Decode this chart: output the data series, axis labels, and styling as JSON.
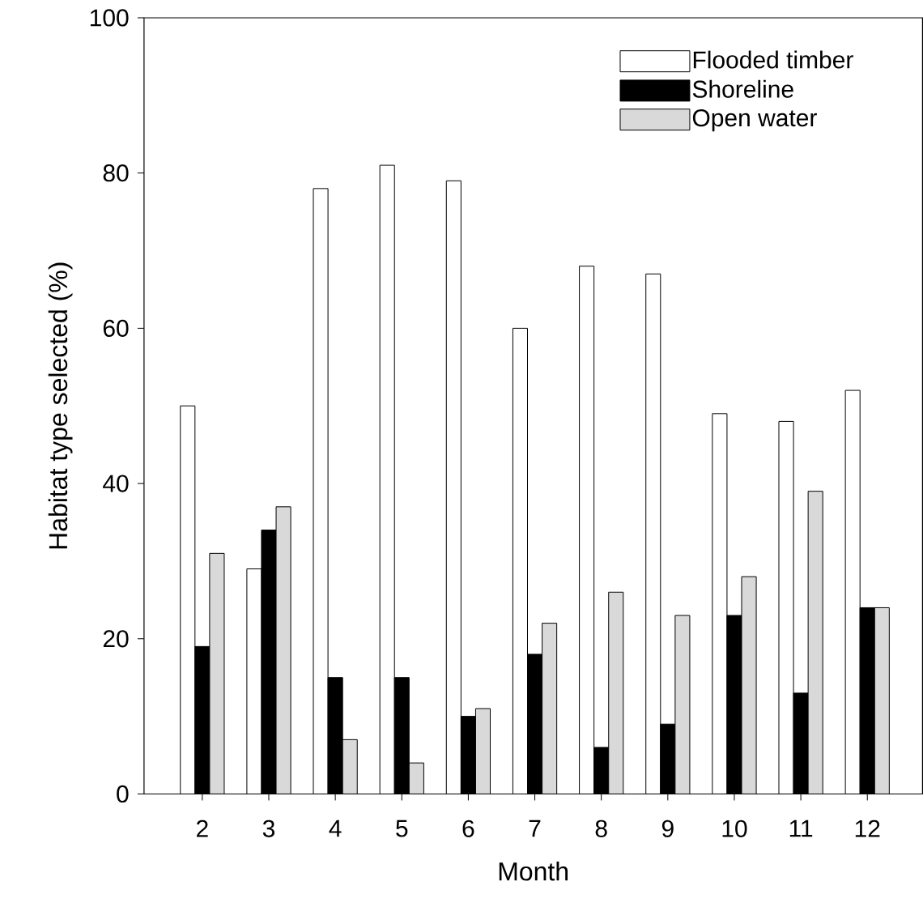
{
  "chart_data": {
    "type": "bar",
    "xlabel": "Month",
    "ylabel": "Habitat type selected (%)",
    "categories": [
      "2",
      "3",
      "4",
      "5",
      "6",
      "7",
      "8",
      "9",
      "10",
      "11",
      "12"
    ],
    "series": [
      {
        "name": "Flooded timber",
        "color": "#ffffff",
        "values": [
          50,
          29,
          78,
          81,
          79,
          60,
          68,
          67,
          49,
          48,
          52
        ]
      },
      {
        "name": "Shoreline",
        "color": "#000000",
        "values": [
          19,
          34,
          15,
          15,
          10,
          18,
          6,
          9,
          23,
          13,
          24
        ]
      },
      {
        "name": "Open water",
        "color": "#d9d9d9",
        "values": [
          31,
          37,
          7,
          4,
          11,
          22,
          26,
          23,
          28,
          39,
          24
        ]
      }
    ],
    "ylim": [
      0,
      100
    ],
    "yticks": [
      0,
      20,
      40,
      60,
      80,
      100
    ],
    "legend": "top right"
  }
}
